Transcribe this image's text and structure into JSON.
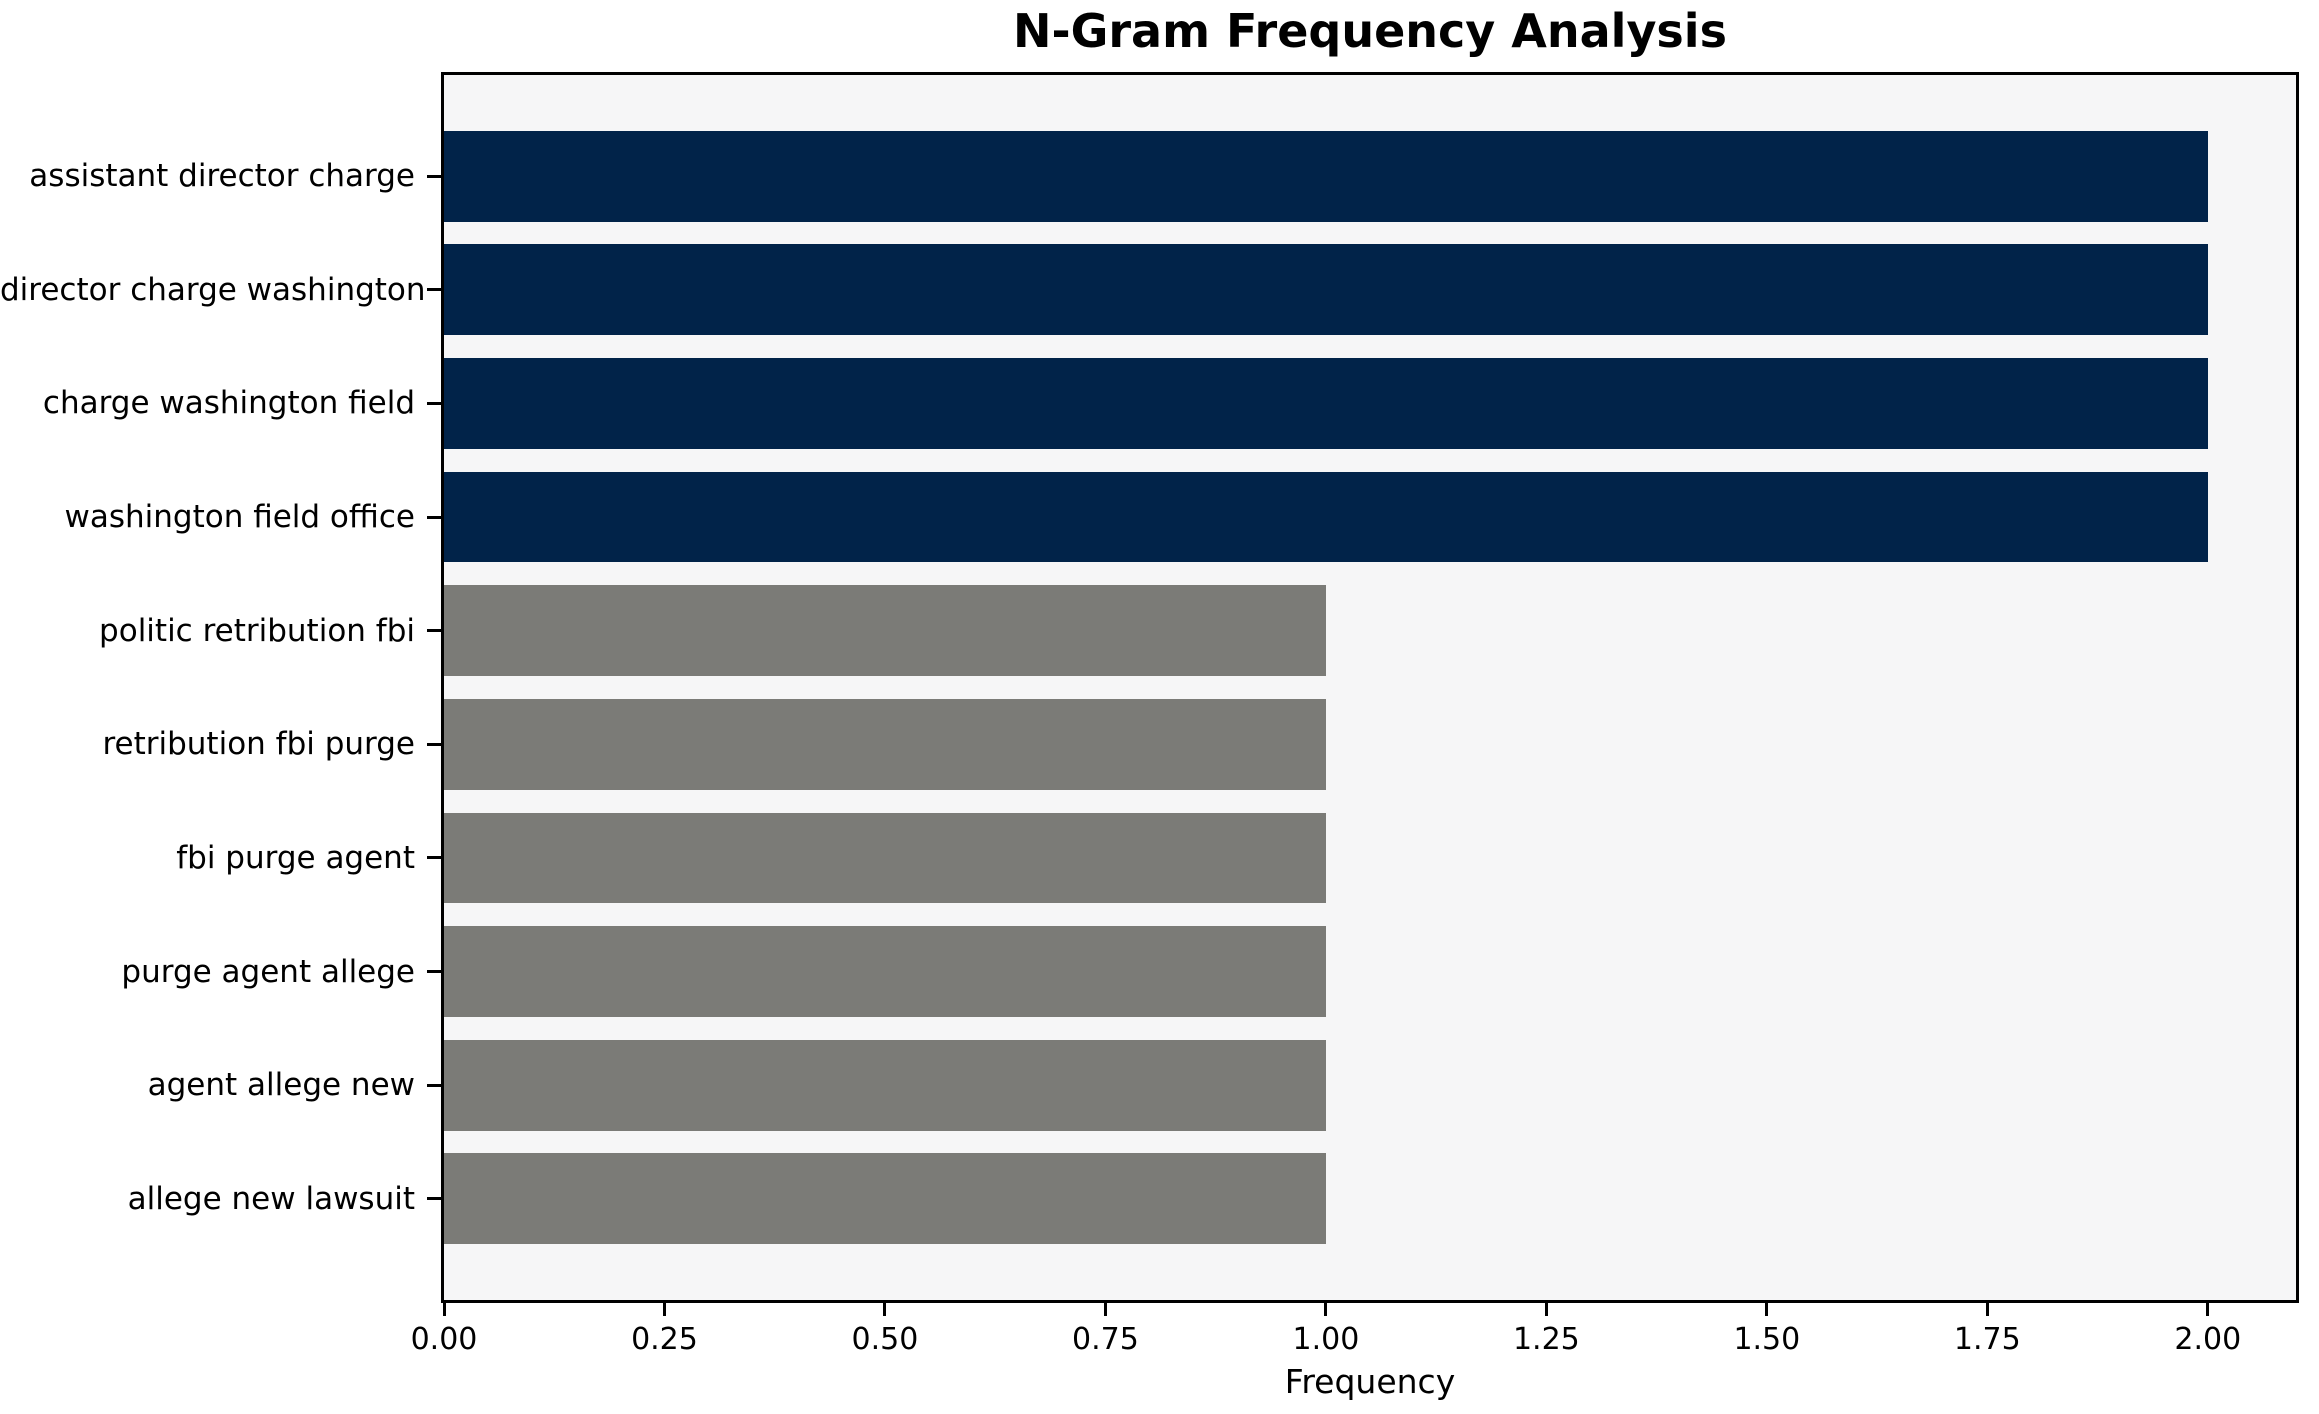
{
  "chart_data": {
    "type": "bar",
    "orientation": "horizontal",
    "title": "N-Gram Frequency Analysis",
    "xlabel": "Frequency",
    "ylabel": "",
    "categories": [
      "assistant director charge",
      "director charge washington",
      "charge washington field",
      "washington field office",
      "politic retribution fbi",
      "retribution fbi purge",
      "fbi purge agent",
      "purge agent allege",
      "agent allege new",
      "allege new lawsuit"
    ],
    "values": [
      2,
      2,
      2,
      2,
      1,
      1,
      1,
      1,
      1,
      1
    ],
    "bar_colors": [
      "#012349",
      "#012349",
      "#012349",
      "#012349",
      "#7b7b77",
      "#7b7b77",
      "#7b7b77",
      "#7b7b77",
      "#7b7b77",
      "#7b7b77"
    ],
    "highlight_color": "#012349",
    "default_color": "#7b7b77",
    "plot_background": "#f6f6f7",
    "spine_color": "#000000",
    "xlim": [
      0,
      2.1
    ],
    "ylim_units": [
      -0.89,
      9.89
    ],
    "bar_thickness_units": 0.8,
    "xticks": [
      0,
      0.25,
      0.5,
      0.75,
      1,
      1.25,
      1.5,
      1.75,
      2
    ],
    "xtick_labels": [
      "0.00",
      "0.25",
      "0.50",
      "0.75",
      "1.00",
      "1.25",
      "1.50",
      "1.75",
      "2.00"
    ],
    "grid": false,
    "legend": false
  }
}
